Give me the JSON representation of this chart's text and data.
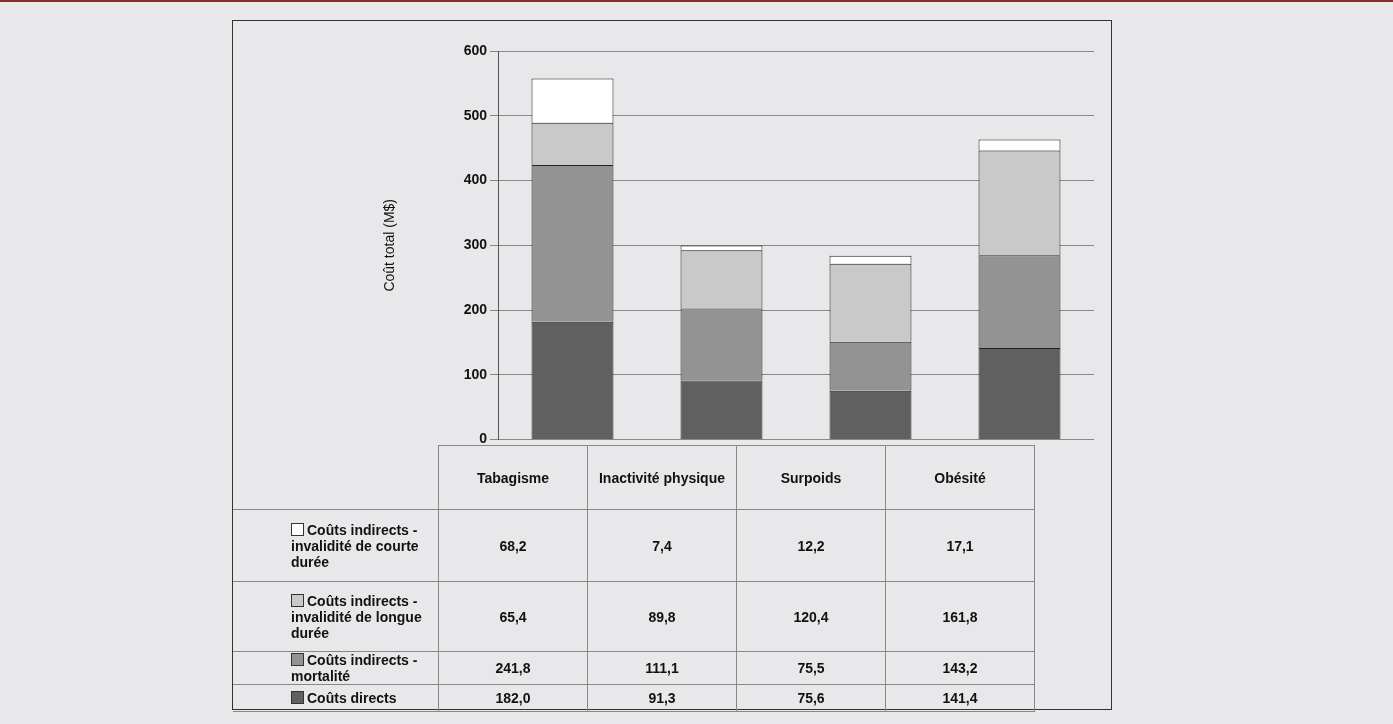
{
  "chart_data": {
    "type": "bar",
    "stacked": true,
    "ylabel": "Coût total (M$)",
    "categories": [
      "Tabagisme",
      "Inactivité physique",
      "Surpoids",
      "Obésité"
    ],
    "series": [
      {
        "name": "Coûts directs",
        "color": "#606060",
        "values": [
          182.0,
          91.3,
          75.6,
          141.4
        ],
        "value_labels": [
          "182,0",
          "91,3",
          "75,6",
          "141,4"
        ]
      },
      {
        "name": "Coûts indirects - mortalité",
        "color": "#939393",
        "values": [
          241.8,
          111.1,
          75.5,
          143.2
        ],
        "value_labels": [
          "241,8",
          "111,1",
          "75,5",
          "143,2"
        ]
      },
      {
        "name": "Coûts indirects - invalidité de longue durée",
        "color": "#c9c9c9",
        "values": [
          65.4,
          89.8,
          120.4,
          161.8
        ],
        "value_labels": [
          "65,4",
          "89,8",
          "120,4",
          "161,8"
        ]
      },
      {
        "name": "Coûts indirects - invalidité de courte durée",
        "color": "#ffffff",
        "values": [
          68.2,
          7.4,
          12.2,
          17.1
        ],
        "value_labels": [
          "68,2",
          "7,4",
          "12,2",
          "17,1"
        ]
      }
    ],
    "ylim": [
      0,
      600
    ],
    "yticks": [
      0,
      100,
      200,
      300,
      400,
      500,
      600
    ],
    "grid": "y",
    "legend": "bottom"
  }
}
